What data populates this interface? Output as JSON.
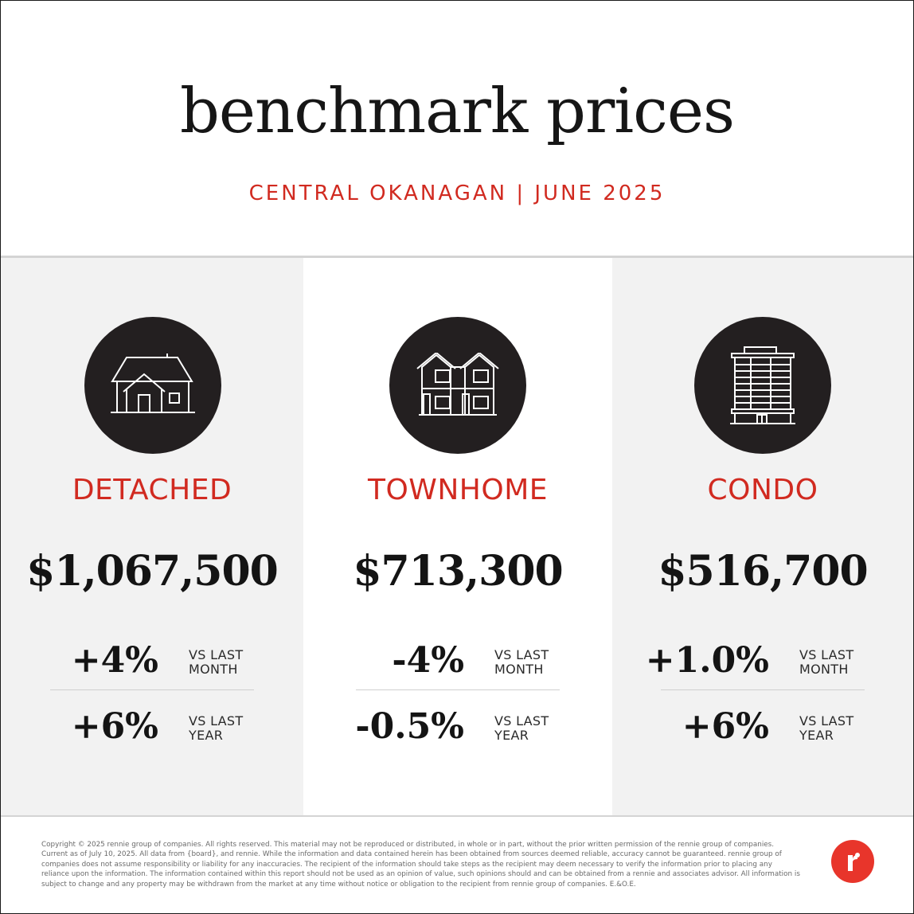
{
  "header": {
    "title": "benchmark prices",
    "subtitle": "CENTRAL OKANAGAN | JUNE 2025"
  },
  "colors": {
    "accent": "#d12a20",
    "icon_circle": "#231f20",
    "logo": "#e8352b"
  },
  "categories": [
    {
      "label": "DETACHED",
      "icon": "detached-house-icon",
      "price": "$1,067,500",
      "month_change": "+4%",
      "month_label": "VS LAST MONTH",
      "year_change": "+6%",
      "year_label": "VS LAST YEAR"
    },
    {
      "label": "TOWNHOME",
      "icon": "townhome-icon",
      "price": "$713,300",
      "month_change": "-4%",
      "month_label": "VS LAST MONTH",
      "year_change": "-0.5%",
      "year_label": "VS LAST YEAR"
    },
    {
      "label": "CONDO",
      "icon": "condo-building-icon",
      "price": "$516,700",
      "month_change": "+1.0%",
      "month_label": "VS LAST MONTH",
      "year_change": "+6%",
      "year_label": "VS LAST YEAR"
    }
  ],
  "footer": {
    "disclaimer": "Copyright © 2025 rennie group of companies. All rights reserved. This material may not be reproduced or distributed, in whole or in part, without the prior written permission of the rennie group of companies. Current as of July 10, 2025. All data from {board}, and rennie. While the information and data contained herein has been obtained from sources deemed reliable, accuracy cannot be guaranteed. rennie group of companies does not assume responsibility or liability for any inaccuracies. The recipient of the information should take steps as the recipient may deem necessary to verify the information prior to placing any reliance upon the information. The information contained within this report should not be used as an opinion of value, such opinions should and can be obtained from a rennie and associates advisor. All information is subject to change and any property may be withdrawn from the market at any time without notice or obligation to the recipient from rennie group of companies. E.&O.E.",
    "logo_icon": "rennie-logo-icon"
  }
}
